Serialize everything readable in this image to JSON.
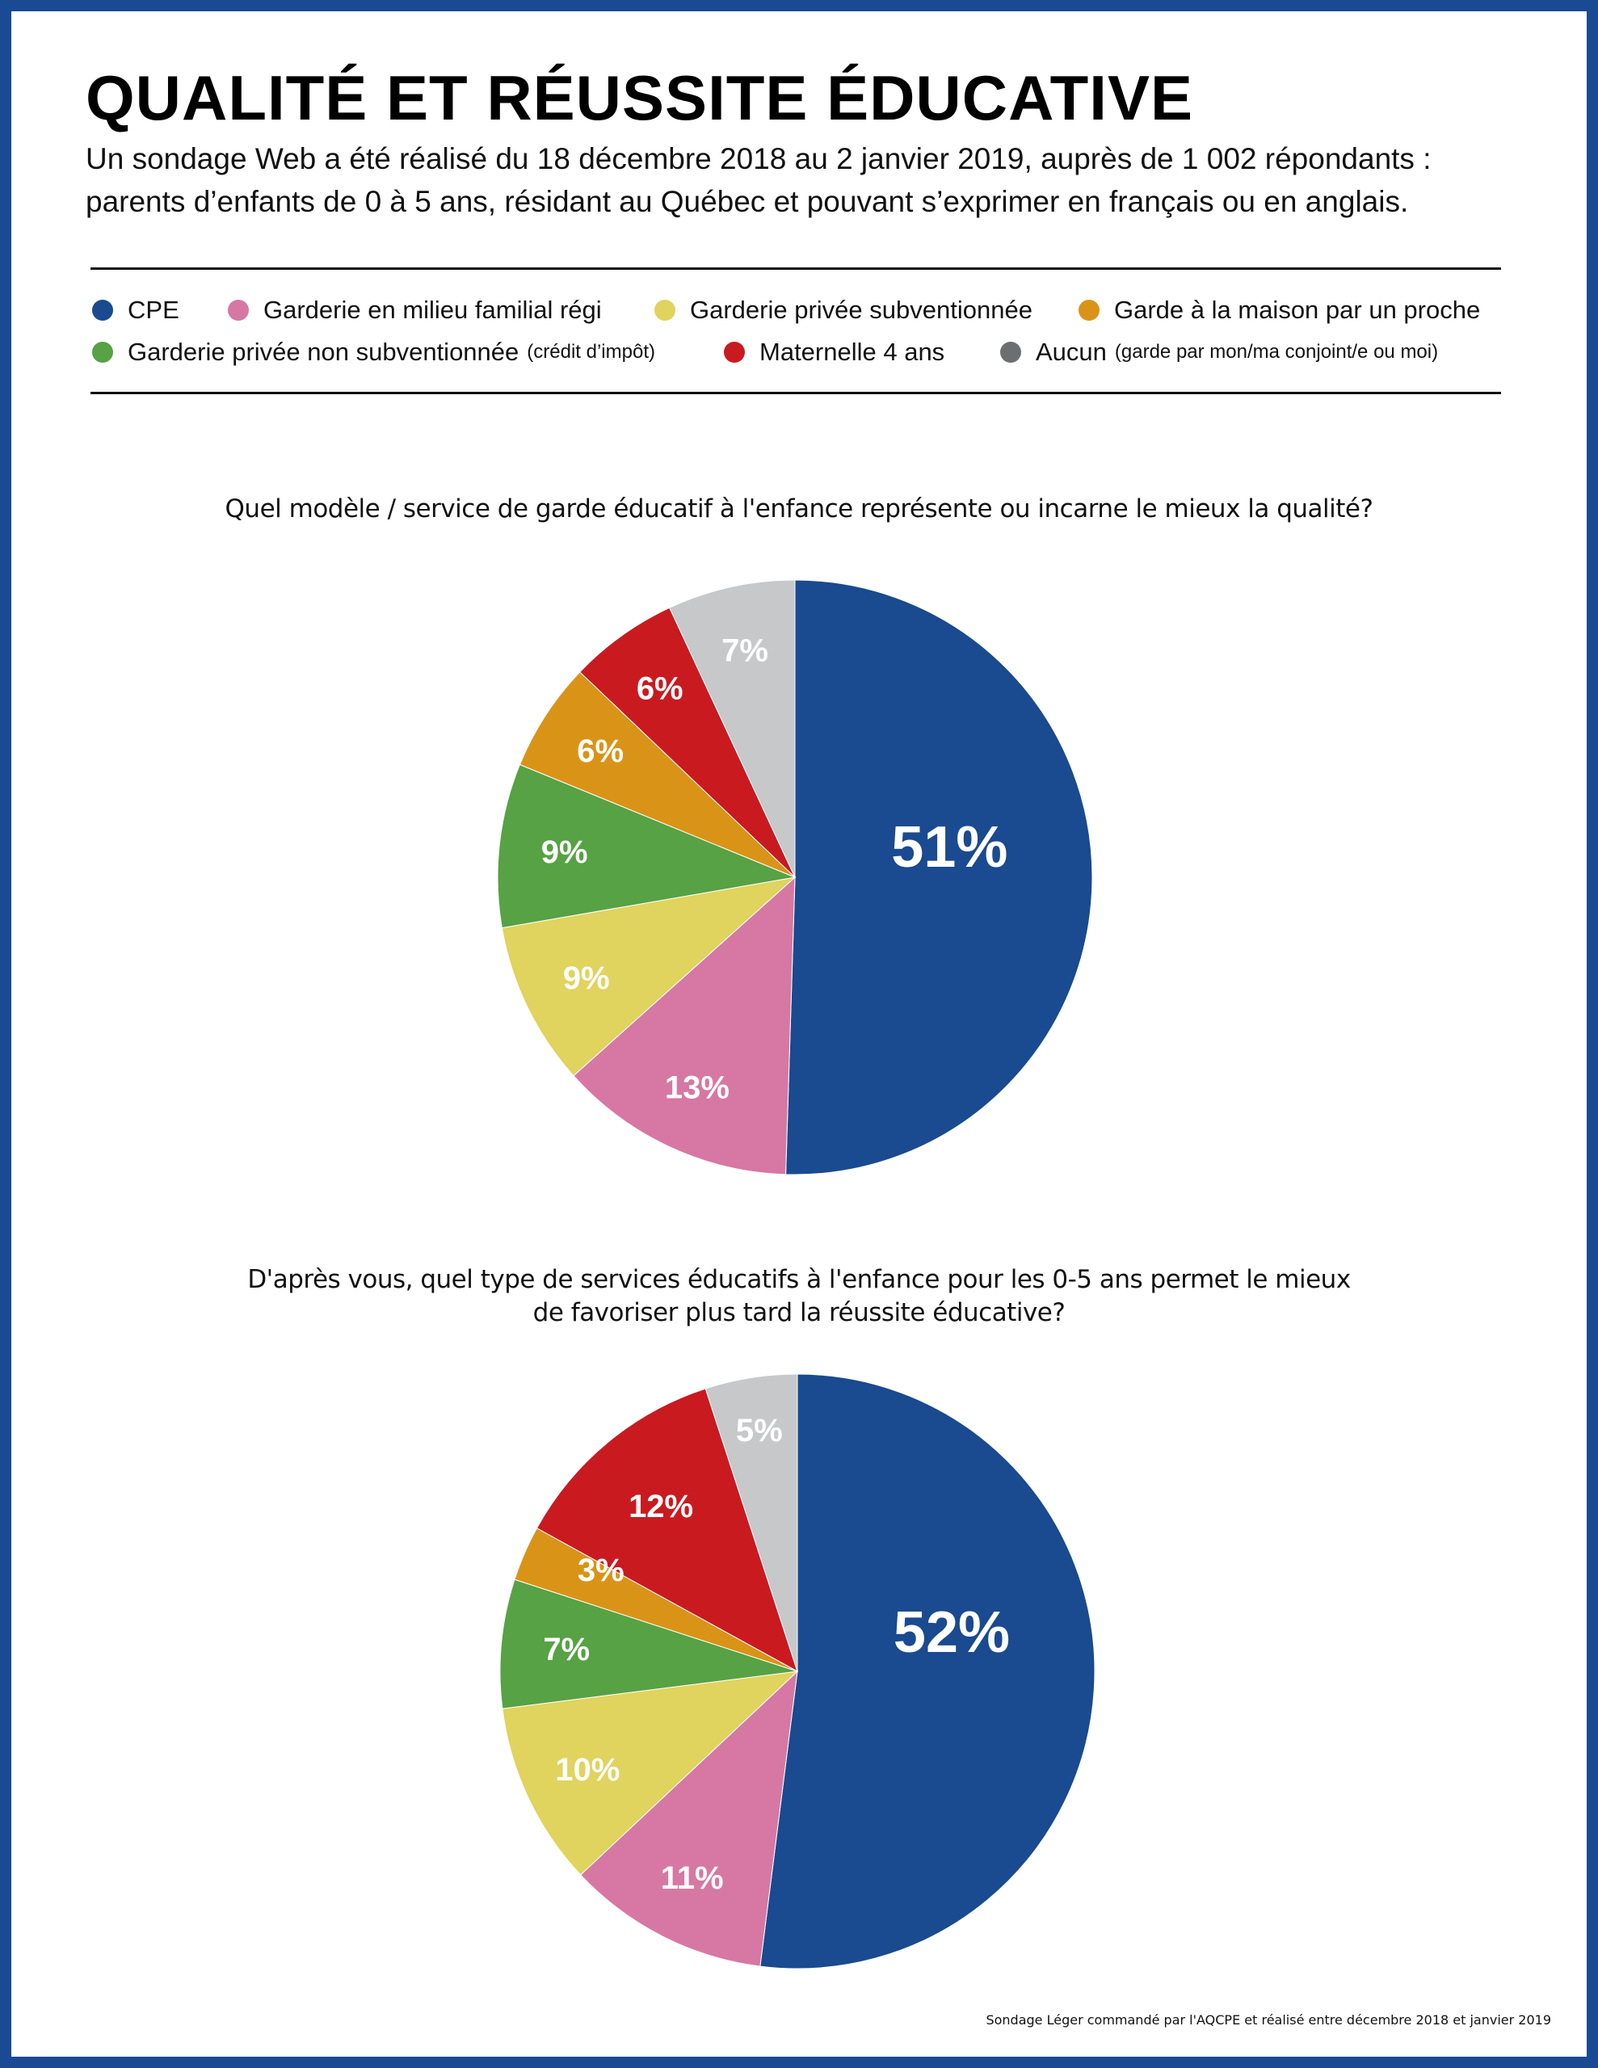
{
  "title": "QUALITÉ ET RÉUSSITE ÉDUCATIVE",
  "subtitle_line1": "Un sondage Web a été réalisé du 18 décembre 2018 au 2 janvier 2019, auprès de 1 002 répondants :",
  "subtitle_line2": "parents d’enfants de 0 à 5 ans, résidant au Québec et pouvant s’exprimer en français ou en anglais.",
  "legend": [
    {
      "label": "CPE",
      "note": "",
      "color": "#1a4a8f"
    },
    {
      "label": "Garderie en milieu familial régi",
      "note": "",
      "color": "#d678a3"
    },
    {
      "label": "Garderie privée subventionnée",
      "note": "",
      "color": "#e0d35e"
    },
    {
      "label": "Garde à la maison par un proche",
      "note": "",
      "color": "#d99417"
    },
    {
      "label": "Garderie privée non subventionnée",
      "note": "(crédit d’impôt)",
      "color": "#56a244"
    },
    {
      "label": "Maternelle 4 ans",
      "note": "",
      "color": "#c91a20"
    },
    {
      "label": "Aucun",
      "note": "(garde par mon/ma conjoint/e ou moi)",
      "color": "#c7c8ca"
    }
  ],
  "legend_dot_colors": {
    "aucun": "#6d6e70"
  },
  "chart_data": [
    {
      "type": "pie",
      "title": "Quel modèle / service de garde éducatif  à l'enfance représente ou incarne le mieux la qualité?",
      "categories": [
        "CPE",
        "Garderie en milieu familial régi",
        "Garderie privée subventionnée",
        "Garderie privée non subventionnée",
        "Garde à la maison par un proche",
        "Maternelle 4 ans",
        "Aucun"
      ],
      "values": [
        51,
        13,
        9,
        9,
        6,
        6,
        7
      ],
      "labels": [
        "51%",
        "13%",
        "9%",
        "9%",
        "6%",
        "6%",
        "7%"
      ],
      "colors": [
        "#1a4a8f",
        "#d678a3",
        "#e0d35e",
        "#56a244",
        "#d99417",
        "#c91a20",
        "#c7c8ca"
      ]
    },
    {
      "type": "pie",
      "title": "D'après vous, quel type de services éducatifs  à l'enfance pour les 0-5 ans permet le mieux de favoriser plus tard la réussite éducative?",
      "title_line1": "D'après vous, quel type de services éducatifs  à l'enfance pour les 0-5 ans permet le mieux",
      "title_line2": "de favoriser plus tard la réussite éducative?",
      "categories": [
        "CPE",
        "Garderie en milieu familial régi",
        "Garderie privée subventionnée",
        "Garderie privée non subventionnée",
        "Garde à la maison par un proche",
        "Maternelle 4 ans",
        "Aucun"
      ],
      "values": [
        52,
        11,
        10,
        7,
        3,
        12,
        5
      ],
      "labels": [
        "52%",
        "11%",
        "10%",
        "7%",
        "3%",
        "12%",
        "5%"
      ],
      "colors": [
        "#1a4a8f",
        "#d678a3",
        "#e0d35e",
        "#56a244",
        "#d99417",
        "#c91a20",
        "#c7c8ca"
      ]
    }
  ],
  "source": "Sondage Léger commandé par l'AQCPE et réalisé entre décembre 2018 et janvier 2019"
}
